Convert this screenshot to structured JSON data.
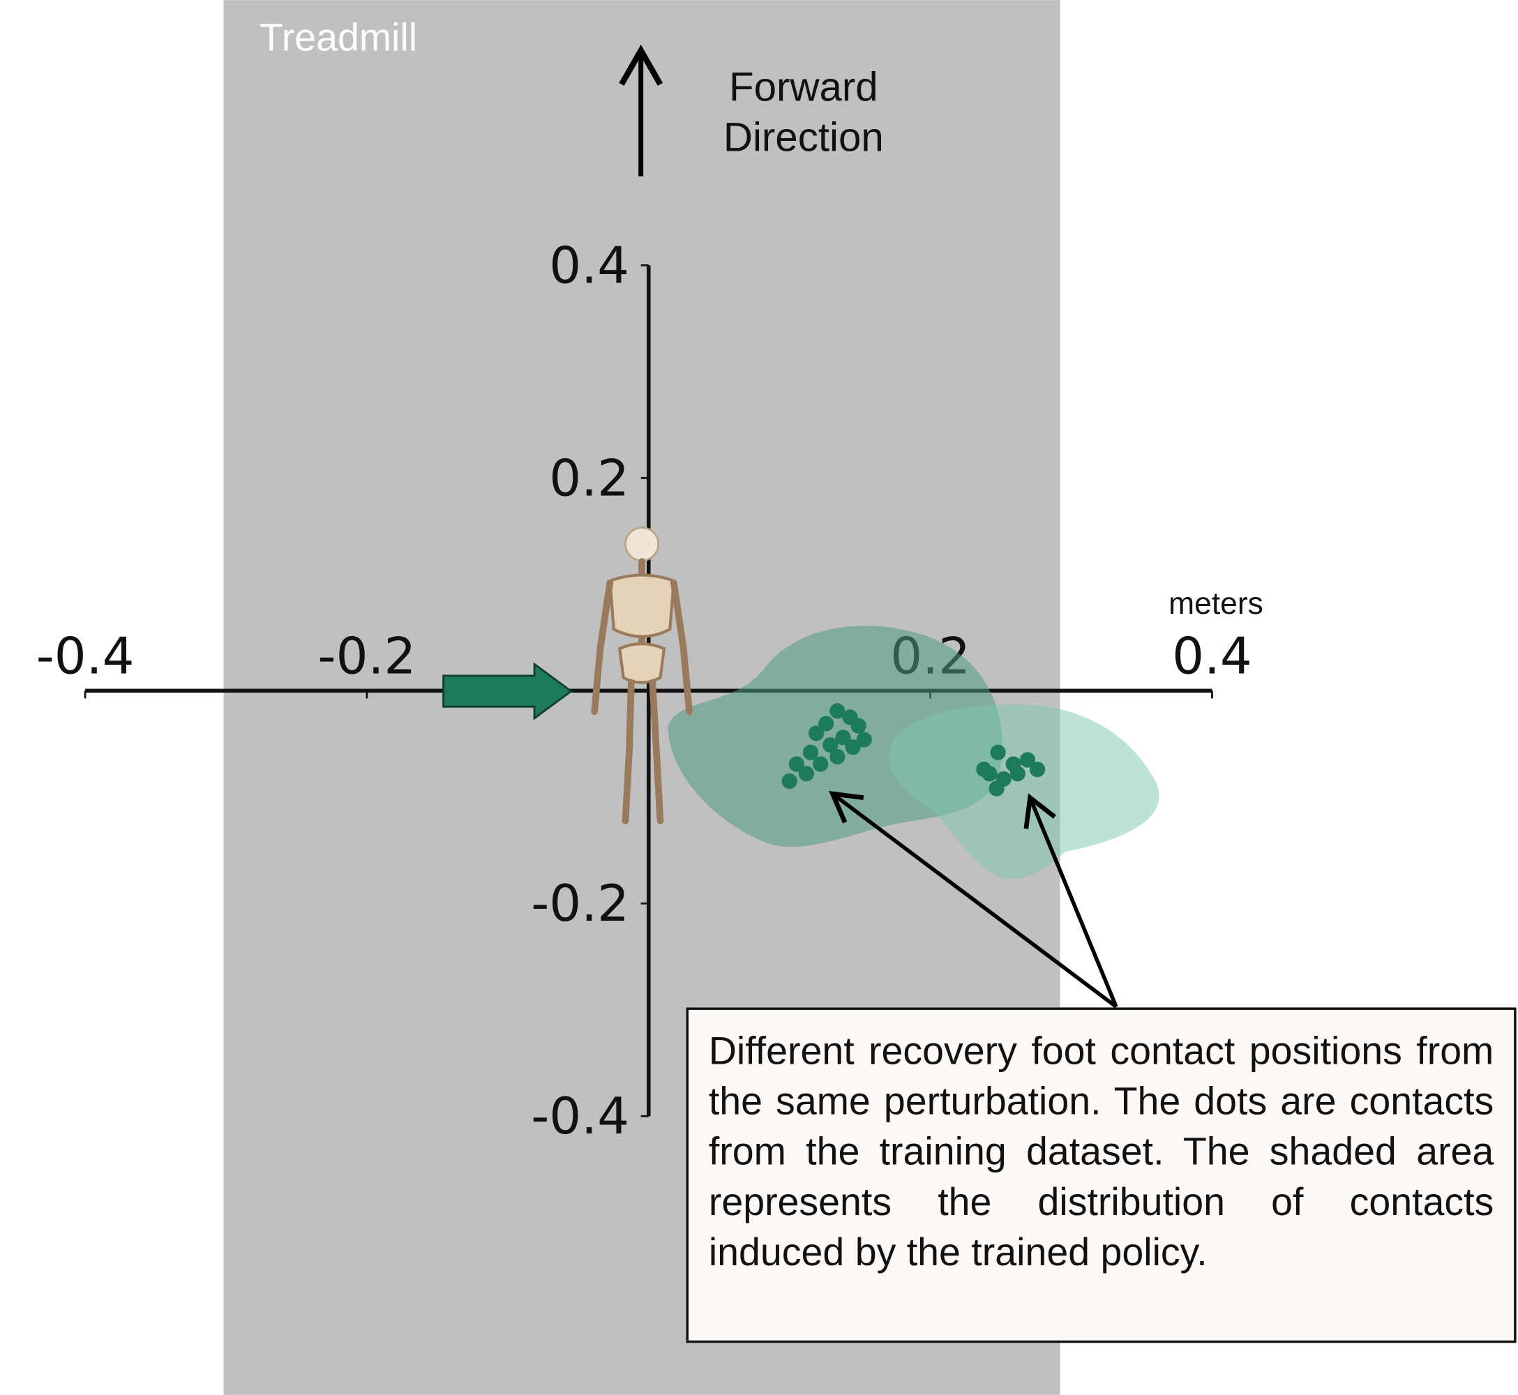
{
  "chart_data": {
    "type": "scatter",
    "labels": {
      "treadmill": "Treadmill",
      "direction": [
        "Forward",
        "Direction"
      ],
      "unit": "meters",
      "note": "Different recovery foot contact positions from the same perturbation. The dots are contacts from the training dataset. The shaded area represents the distribution of contacts induced by the trained policy."
    },
    "xlim": [
      -0.4,
      0.4
    ],
    "ylim": [
      -0.4,
      0.4
    ],
    "xticks": [
      -0.4,
      -0.2,
      0.2,
      0.4
    ],
    "yticks": [
      -0.4,
      -0.2,
      0.2,
      0.4
    ],
    "series": [
      {
        "color": "#1e7a5c",
        "x": [
          0.134,
          0.143,
          0.126,
          0.149,
          0.119,
          0.138,
          0.129,
          0.153,
          0.115,
          0.105,
          0.112,
          0.1,
          0.122,
          0.134,
          0.145,
          0.248,
          0.259,
          0.269,
          0.276,
          0.242,
          0.252,
          0.262,
          0.247,
          0.238
        ],
        "y": [
          -0.019,
          -0.025,
          -0.031,
          -0.033,
          -0.04,
          -0.044,
          -0.051,
          -0.046,
          -0.058,
          -0.069,
          -0.078,
          -0.085,
          -0.069,
          -0.062,
          -0.053,
          -0.058,
          -0.069,
          -0.065,
          -0.074,
          -0.078,
          -0.083,
          -0.078,
          -0.092,
          -0.074
        ]
      }
    ]
  }
}
